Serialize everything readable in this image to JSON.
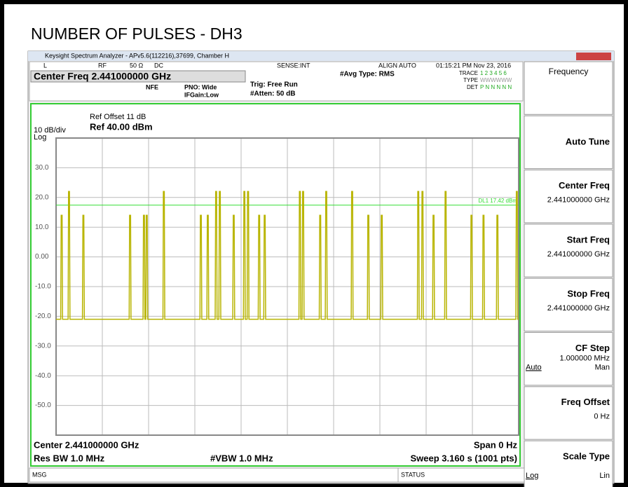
{
  "title": "NUMBER OF PULSES - DH3",
  "window": {
    "title": "Keysight Spectrum Analyzer - APv5.6(112216),37699, Chamber H"
  },
  "status_bar": [
    "L",
    "RF",
    "50 Ω",
    "DC",
    "SENSE:INT",
    "ALIGN AUTO",
    "01:15:21 PM Nov 23, 2016"
  ],
  "header": {
    "center_freq": "Center Freq 2.441000000 GHz",
    "nfe": "NFE",
    "pno": "PNO: Wide",
    "ifgain": "IFGain:Low",
    "trig": "Trig: Free Run",
    "atten": "#Atten: 50 dB",
    "avg": "#Avg Type: RMS",
    "trace_label": "TRACE",
    "trace": "1 2 3 4 5 6",
    "type_label": "TYPE",
    "type": "WWWWWW",
    "det_label": "DET",
    "det": "P N N N N N"
  },
  "chart_data": {
    "type": "line",
    "ref_offset": "Ref Offset 11 dB",
    "scale": "10 dB/div",
    "ref_level": "Ref 40.00 dBm",
    "log": "Log",
    "xlim": [
      0,
      1000
    ],
    "ylim": [
      -60,
      40
    ],
    "yticks": [
      {
        "value": 30,
        "label": "30.0"
      },
      {
        "value": 20,
        "label": "20.0"
      },
      {
        "value": 10,
        "label": "10.0"
      },
      {
        "value": 0,
        "label": "0.00"
      },
      {
        "value": -10,
        "label": "-10.0"
      },
      {
        "value": -20,
        "label": "-20.0"
      },
      {
        "value": -30,
        "label": "-30.0"
      },
      {
        "value": -40,
        "label": "-40.0"
      },
      {
        "value": -50,
        "label": "-50.0"
      }
    ],
    "grid": true,
    "color": "#b8b400",
    "display_line": {
      "value": 17.42,
      "label": "DL1 17.42 dBm",
      "color": "#33dd33"
    },
    "x": [
      0,
      10,
      11,
      13,
      14,
      26,
      27,
      29,
      30,
      57,
      58,
      60,
      61,
      158,
      159,
      161,
      162,
      188,
      189,
      191,
      192,
      194,
      195,
      197,
      198,
      231,
      232,
      234,
      235,
      311,
      312,
      314,
      315,
      326,
      327,
      329,
      330,
      344,
      345,
      347,
      348,
      352,
      353,
      355,
      356,
      382,
      383,
      385,
      386,
      405,
      406,
      408,
      409,
      413,
      414,
      416,
      417,
      437,
      438,
      440,
      441,
      449,
      450,
      452,
      453,
      525,
      526,
      528,
      529,
      532,
      533,
      535,
      536,
      569,
      570,
      572,
      573,
      582,
      583,
      585,
      586,
      638,
      639,
      641,
      642,
      673,
      674,
      676,
      677,
      702,
      703,
      705,
      706,
      781,
      782,
      784,
      785,
      790,
      791,
      793,
      794,
      814,
      815,
      817,
      818,
      840,
      841,
      843,
      844,
      896,
      897,
      899,
      900,
      922,
      923,
      925,
      926,
      952,
      953,
      955,
      956,
      994,
      995,
      997,
      998,
      1000
    ],
    "values": [
      -21,
      -21,
      14,
      14,
      -21,
      -21,
      22,
      22,
      -21,
      -21,
      14,
      14,
      -21,
      -21,
      14,
      14,
      -21,
      -21,
      14,
      14,
      -21,
      -21,
      14,
      14,
      -21,
      -21,
      22,
      22,
      -21,
      -21,
      14,
      14,
      -21,
      -21,
      14,
      14,
      -21,
      -21,
      22,
      22,
      -21,
      -21,
      22,
      22,
      -21,
      -21,
      14,
      14,
      -21,
      -21,
      22,
      22,
      -21,
      -21,
      22,
      22,
      -21,
      -21,
      14,
      14,
      -21,
      -21,
      14,
      14,
      -21,
      -21,
      22,
      22,
      -21,
      -21,
      22,
      22,
      -21,
      -21,
      14,
      14,
      -21,
      -21,
      22,
      22,
      -21,
      -21,
      22,
      22,
      -21,
      -21,
      14,
      14,
      -21,
      -21,
      14,
      14,
      -21,
      -21,
      22,
      22,
      -21,
      -21,
      22,
      22,
      -21,
      -21,
      14,
      14,
      -21,
      -21,
      22,
      22,
      -21,
      -21,
      14,
      14,
      -21,
      -21,
      14,
      14,
      -21,
      -21,
      14,
      14,
      -21,
      -21,
      22,
      22,
      -21,
      -21
    ]
  },
  "footer": {
    "center": "Center 2.441000000 GHz",
    "span": "Span 0 Hz",
    "rbw": "Res BW 1.0 MHz",
    "vbw": "#VBW 1.0 MHz",
    "sweep": "Sweep  3.160 s (1001 pts)"
  },
  "softkeys": [
    {
      "label": "Frequency"
    },
    {
      "label": "Auto Tune"
    },
    {
      "label": "Center Freq",
      "value": "2.441000000 GHz"
    },
    {
      "label": "Start Freq",
      "value": "2.441000000 GHz"
    },
    {
      "label": "Stop Freq",
      "value": "2.441000000 GHz"
    },
    {
      "label": "CF Step",
      "value": "1.000000 MHz",
      "left": "Auto",
      "right": "Man"
    },
    {
      "label": "Freq Offset",
      "value": "0 Hz"
    },
    {
      "label": "Scale Type",
      "left": "Log",
      "right": "Lin"
    }
  ],
  "msg": "MSG",
  "status": "STATUS"
}
